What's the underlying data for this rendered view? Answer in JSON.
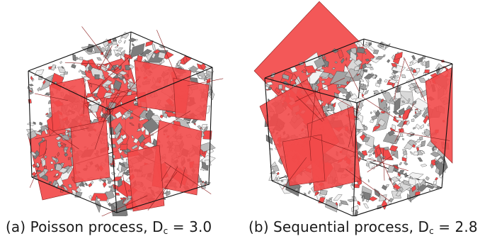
{
  "figure": {
    "panels": [
      {
        "caption_prefix": "(a) Poisson process, D",
        "caption_subscript": "c",
        "caption_suffix": " = 3.0"
      },
      {
        "caption_prefix": "(b) Sequential process, D",
        "caption_subscript": "c",
        "caption_suffix": " = 2.8"
      }
    ],
    "colors": {
      "large_fracture": "#f24a4a",
      "large_fracture_edge": "#8c1f1f",
      "small_fracture_light": "#f2f2f2",
      "small_fracture_mid": "#bdbdbd",
      "small_fracture_dark": "#7d7d7d",
      "cube_edge": "#111111"
    }
  }
}
